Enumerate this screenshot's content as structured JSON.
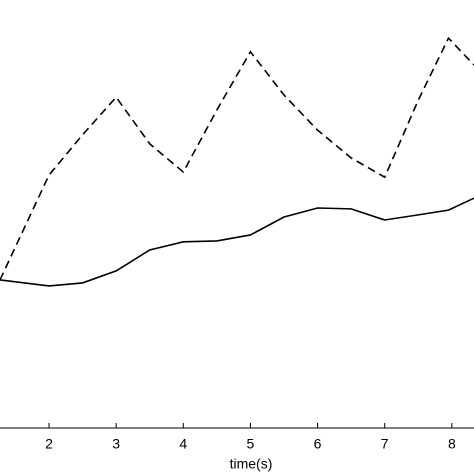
{
  "chart_data": {
    "type": "line",
    "x_label": "time(s)",
    "x": [
      1.27,
      2,
      2.5,
      3,
      3.5,
      4,
      4.5,
      5,
      5.5,
      6,
      6.5,
      7,
      7.5,
      7.95,
      8.33
    ],
    "series": [
      {
        "color": "#000000",
        "linestyle": "dashed",
        "values": [
          3.46,
          5.91,
          6.85,
          7.73,
          6.64,
          5.98,
          7.43,
          8.79,
          7.78,
          6.96,
          6.31,
          5.86,
          7.66,
          9.11,
          8.48
        ]
      },
      {
        "color": "#000000",
        "linestyle": "solid",
        "values": [
          3.46,
          3.32,
          3.39,
          3.67,
          4.16,
          4.35,
          4.37,
          4.51,
          4.93,
          5.14,
          5.12,
          4.86,
          4.98,
          5.09,
          5.37
        ]
      }
    ],
    "xlim": [
      1.27,
      8.33
    ],
    "xticks": [
      2,
      3,
      4,
      5,
      6,
      7,
      8
    ],
    "ylim": [
      0,
      10
    ]
  }
}
